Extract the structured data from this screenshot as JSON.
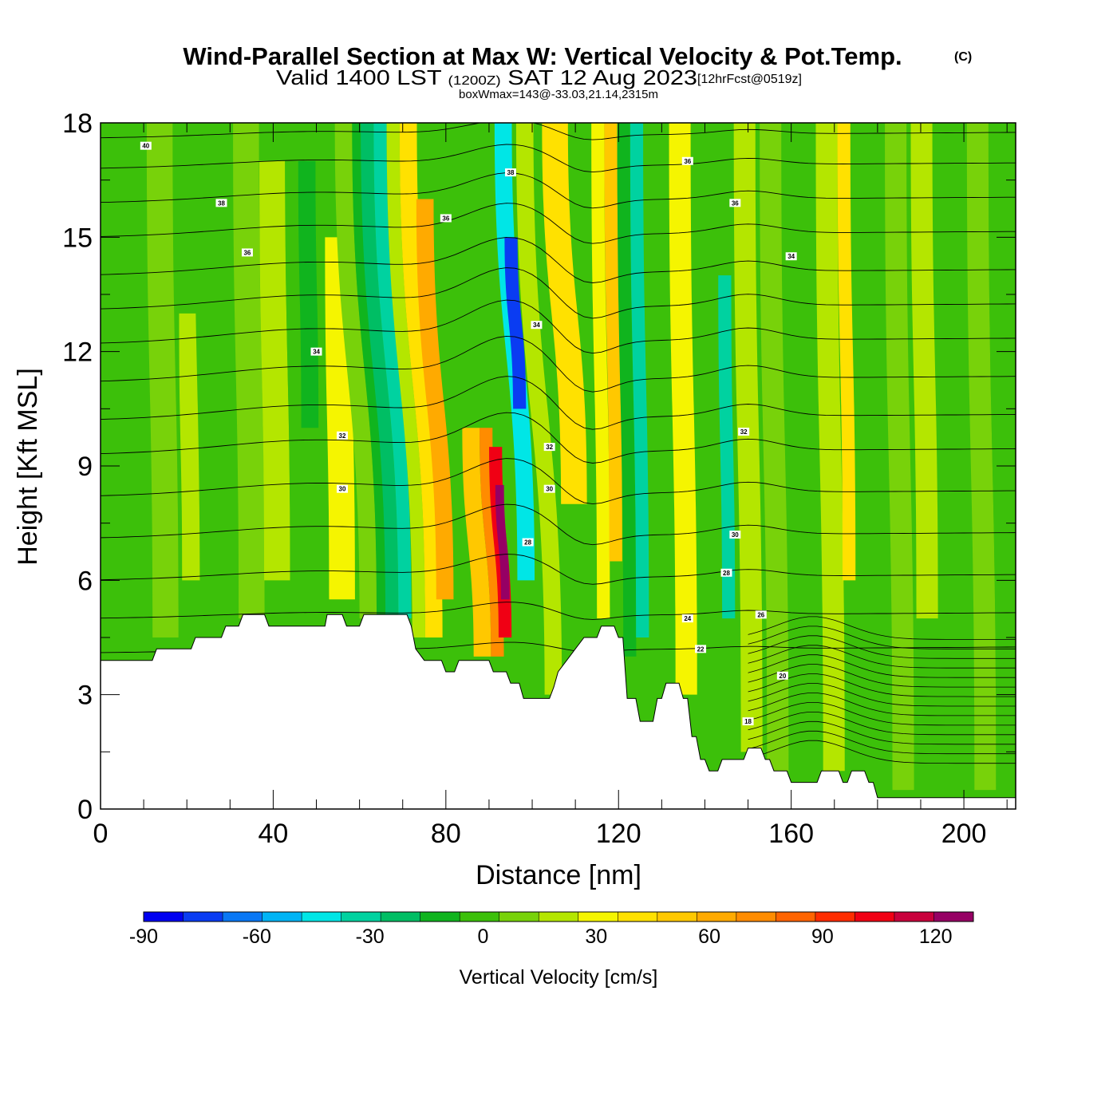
{
  "chart_data": {
    "type": "heatmap",
    "title": "Wind-Parallel Section at Max W: Vertical Velocity & Pot.Temp.",
    "title_mark": "(C)",
    "subtitle": {
      "prefix": "Valid 1400 LST",
      "utc": "(1200Z)",
      "date": "SAT 12 Aug 2023",
      "forecast": "[12hrFcst@0519z]"
    },
    "box_note": "boxWmax=143@-33.03,21.14,2315m",
    "xlabel": "Distance [nm]",
    "ylabel": "Height [Kft MSL]",
    "xlim": [
      0,
      212
    ],
    "ylim": [
      0,
      18
    ],
    "xticks": [
      "0",
      "40",
      "80",
      "120",
      "160",
      "200"
    ],
    "yticks": [
      "0",
      "3",
      "6",
      "9",
      "12",
      "15",
      "18"
    ],
    "colorbar": {
      "label": "Vertical Velocity [cm/s]",
      "min": -90,
      "max": 130,
      "step": 10,
      "ticks": [
        "-90",
        "-60",
        "-30",
        "0",
        "30",
        "60",
        "90",
        "120"
      ],
      "colors": [
        "#0000f0",
        "#0a3cf2",
        "#0a78f5",
        "#00b4f5",
        "#00e6e6",
        "#00d2a0",
        "#00be64",
        "#10b41e",
        "#3cc00a",
        "#78d20a",
        "#b4e600",
        "#f5f500",
        "#ffe100",
        "#ffc800",
        "#ffaa00",
        "#ff8c00",
        "#ff6400",
        "#ff2d00",
        "#f00014",
        "#c8003c",
        "#960064"
      ]
    },
    "vertical_velocity_bands": [
      {
        "x": 2,
        "w": 8,
        "v": -5,
        "y0": 4,
        "y1": 18
      },
      {
        "x": 12,
        "w": 6,
        "v": 5,
        "y0": 4.5,
        "y1": 18
      },
      {
        "x": 19,
        "w": 5,
        "v": 15,
        "y0": 6,
        "y1": 13
      },
      {
        "x": 23,
        "w": 8,
        "v": -5,
        "y0": 4.8,
        "y1": 18
      },
      {
        "x": 32,
        "w": 6,
        "v": 5,
        "y0": 5,
        "y1": 18
      },
      {
        "x": 38,
        "w": 6,
        "v": 15,
        "y0": 6,
        "y1": 17
      },
      {
        "x": 44,
        "w": 6,
        "v": -5,
        "y0": 5,
        "y1": 18
      },
      {
        "x": 47,
        "w": 4,
        "v": -15,
        "y0": 10,
        "y1": 17
      },
      {
        "x": 53,
        "w": 6,
        "v": 25,
        "y0": 5.5,
        "y1": 15
      },
      {
        "x": 60,
        "w": 4,
        "v": 5,
        "y0": 5,
        "y1": 18
      },
      {
        "x": 64,
        "w": 3,
        "v": -15,
        "y0": 5.1,
        "y1": 18
      },
      {
        "x": 66,
        "w": 3,
        "v": -25,
        "y0": 5,
        "y1": 18
      },
      {
        "x": 69,
        "w": 3,
        "v": -35,
        "y0": 5,
        "y1": 18
      },
      {
        "x": 72,
        "w": 3,
        "v": 15,
        "y0": 4.5,
        "y1": 18
      },
      {
        "x": 75,
        "w": 4,
        "v": 35,
        "y0": 4.5,
        "y1": 18
      },
      {
        "x": 78,
        "w": 4,
        "v": 55,
        "y0": 5.5,
        "y1": 16
      },
      {
        "x": 86,
        "w": 4,
        "v": 45,
        "y0": 4,
        "y1": 10
      },
      {
        "x": 90,
        "w": 3,
        "v": 65,
        "y0": 4,
        "y1": 10
      },
      {
        "x": 92,
        "w": 3,
        "v": 95,
        "y0": 4.5,
        "y1": 9.5
      },
      {
        "x": 93,
        "w": 2,
        "v": 125,
        "y0": 5.5,
        "y1": 8.5
      },
      {
        "x": 97,
        "w": 4,
        "v": -45,
        "y0": 6,
        "y1": 18
      },
      {
        "x": 98,
        "w": 3,
        "v": -75,
        "y0": 10.5,
        "y1": 15
      },
      {
        "x": 102,
        "w": 4,
        "v": 15,
        "y0": 3,
        "y1": 18
      },
      {
        "x": 108,
        "w": 6,
        "v": 35,
        "y0": 8,
        "y1": 18
      },
      {
        "x": 115,
        "w": 3,
        "v": 25,
        "y0": 5,
        "y1": 18
      },
      {
        "x": 118,
        "w": 3,
        "v": 45,
        "y0": 6.5,
        "y1": 18
      },
      {
        "x": 121,
        "w": 3,
        "v": -15,
        "y0": 4,
        "y1": 18
      },
      {
        "x": 124,
        "w": 3,
        "v": -35,
        "y0": 4.5,
        "y1": 18
      },
      {
        "x": 128,
        "w": 4,
        "v": -5,
        "y0": 2.5,
        "y1": 18
      },
      {
        "x": 133,
        "w": 5,
        "v": 25,
        "y0": 3,
        "y1": 18
      },
      {
        "x": 139,
        "w": 4,
        "v": -5,
        "y0": 1.5,
        "y1": 18
      },
      {
        "x": 144,
        "w": 3,
        "v": -35,
        "y0": 5,
        "y1": 14
      },
      {
        "x": 148,
        "w": 5,
        "v": 15,
        "y0": 1.5,
        "y1": 18
      },
      {
        "x": 154,
        "w": 5,
        "v": 5,
        "y0": 1,
        "y1": 18
      },
      {
        "x": 160,
        "w": 6,
        "v": -5,
        "y0": 1,
        "y1": 18
      },
      {
        "x": 167,
        "w": 5,
        "v": 15,
        "y0": 1,
        "y1": 18
      },
      {
        "x": 172,
        "w": 3,
        "v": 35,
        "y0": 6,
        "y1": 18
      },
      {
        "x": 176,
        "w": 6,
        "v": -5,
        "y0": 0.5,
        "y1": 18
      },
      {
        "x": 183,
        "w": 5,
        "v": 5,
        "y0": 0.5,
        "y1": 18
      },
      {
        "x": 189,
        "w": 5,
        "v": 15,
        "y0": 5,
        "y1": 18
      },
      {
        "x": 195,
        "w": 6,
        "v": -5,
        "y0": 1,
        "y1": 18
      },
      {
        "x": 202,
        "w": 5,
        "v": 5,
        "y0": 0.5,
        "y1": 18
      },
      {
        "x": 207,
        "w": 4,
        "v": -5,
        "y0": 0.5,
        "y1": 18
      }
    ],
    "terrain_kft": [
      [
        0,
        3.9
      ],
      [
        12,
        3.9
      ],
      [
        13,
        4.2
      ],
      [
        21,
        4.2
      ],
      [
        22,
        4.5
      ],
      [
        28,
        4.5
      ],
      [
        29,
        4.8
      ],
      [
        32,
        4.8
      ],
      [
        33,
        5.1
      ],
      [
        38,
        5.1
      ],
      [
        39,
        4.8
      ],
      [
        52,
        4.8
      ],
      [
        52.5,
        5.1
      ],
      [
        56,
        5.1
      ],
      [
        57,
        4.8
      ],
      [
        60,
        4.8
      ],
      [
        61,
        5.1
      ],
      [
        71,
        5.1
      ],
      [
        72,
        4.8
      ],
      [
        73,
        4.2
      ],
      [
        75,
        3.9
      ],
      [
        79,
        3.9
      ],
      [
        80,
        3.6
      ],
      [
        82,
        3.6
      ],
      [
        83,
        3.9
      ],
      [
        90,
        3.9
      ],
      [
        91,
        3.6
      ],
      [
        94,
        3.6
      ],
      [
        95,
        3.3
      ],
      [
        97,
        3.3
      ],
      [
        98,
        2.9
      ],
      [
        104,
        2.9
      ],
      [
        105,
        3.2
      ],
      [
        106,
        3.6
      ],
      [
        108,
        3.9
      ],
      [
        110,
        4.2
      ],
      [
        112,
        4.5
      ],
      [
        115,
        4.5
      ],
      [
        116,
        4.8
      ],
      [
        119,
        4.8
      ],
      [
        120,
        4.5
      ],
      [
        121,
        4.5
      ],
      [
        122,
        2.9
      ],
      [
        124,
        2.9
      ],
      [
        125,
        2.3
      ],
      [
        128,
        2.3
      ],
      [
        129,
        2.9
      ],
      [
        130,
        2.9
      ],
      [
        131,
        3.3
      ],
      [
        134,
        3.3
      ],
      [
        135,
        2.9
      ],
      [
        136,
        2.9
      ],
      [
        137,
        1.9
      ],
      [
        138,
        1.9
      ],
      [
        139,
        1.3
      ],
      [
        140,
        1.3
      ],
      [
        141,
        1
      ],
      [
        143,
        1
      ],
      [
        144,
        1.3
      ],
      [
        149,
        1.3
      ],
      [
        150,
        1.6
      ],
      [
        153,
        1.6
      ],
      [
        154,
        1.3
      ],
      [
        155,
        1.3
      ],
      [
        156,
        1
      ],
      [
        159,
        1
      ],
      [
        160,
        0.7
      ],
      [
        166,
        0.7
      ],
      [
        167,
        1
      ],
      [
        171,
        1
      ],
      [
        172,
        0.7
      ],
      [
        173,
        0.7
      ],
      [
        174,
        1
      ],
      [
        177,
        1
      ],
      [
        178,
        0.7
      ],
      [
        179,
        0.7
      ],
      [
        180,
        0.3
      ],
      [
        209,
        0.3
      ],
      [
        210,
        0.3
      ],
      [
        212,
        0.3
      ]
    ],
    "theta_contours": [
      {
        "base": 4.1,
        "amp": 0.2,
        "label": "",
        "lx": 0
      },
      {
        "base": 5.0,
        "amp": 0.35,
        "label": "",
        "lx": 0
      },
      {
        "base": 6.0,
        "amp": 0.6,
        "label": "28",
        "lx": 99
      },
      {
        "base": 7.1,
        "amp": 0.8,
        "label": "30",
        "lx": 57
      },
      {
        "base": 8.2,
        "amp": 0.9,
        "label": "",
        "lx": 0
      },
      {
        "base": 9.3,
        "amp": 1.0,
        "label": "32",
        "lx": 56
      },
      {
        "base": 10.2,
        "amp": 1.05,
        "label": "",
        "lx": 0
      },
      {
        "base": 11.2,
        "amp": 1.1,
        "label": "34",
        "lx": 50
      },
      {
        "base": 12.2,
        "amp": 1.05,
        "label": "",
        "lx": 0
      },
      {
        "base": 13.1,
        "amp": 1.0,
        "label": "",
        "lx": 0
      },
      {
        "base": 14.0,
        "amp": 0.9,
        "label": "36",
        "lx": 34
      },
      {
        "base": 15.0,
        "amp": 0.8,
        "label": "",
        "lx": 0
      },
      {
        "base": 15.9,
        "amp": 0.7,
        "label": "38",
        "lx": 28
      },
      {
        "base": 16.8,
        "amp": 0.55,
        "label": "",
        "lx": 0
      },
      {
        "base": 17.6,
        "amp": 0.4,
        "label": "40",
        "lx": 10
      }
    ],
    "contour_labels": [
      {
        "text": "40",
        "x": 10.5,
        "y": 17.4
      },
      {
        "text": "38",
        "x": 28,
        "y": 15.9
      },
      {
        "text": "36",
        "x": 34,
        "y": 14.6
      },
      {
        "text": "34",
        "x": 50,
        "y": 12
      },
      {
        "text": "32",
        "x": 56,
        "y": 9.8
      },
      {
        "text": "30",
        "x": 56,
        "y": 8.4
      },
      {
        "text": "38",
        "x": 95,
        "y": 16.7
      },
      {
        "text": "36",
        "x": 80,
        "y": 15.5
      },
      {
        "text": "34",
        "x": 101,
        "y": 12.7
      },
      {
        "text": "32",
        "x": 104,
        "y": 9.5
      },
      {
        "text": "30",
        "x": 104,
        "y": 8.4
      },
      {
        "text": "28",
        "x": 99,
        "y": 7
      },
      {
        "text": "36",
        "x": 136,
        "y": 17
      },
      {
        "text": "36",
        "x": 147,
        "y": 15.9
      },
      {
        "text": "34",
        "x": 160,
        "y": 14.5
      },
      {
        "text": "32",
        "x": 149,
        "y": 9.9
      },
      {
        "text": "30",
        "x": 147,
        "y": 7.2
      },
      {
        "text": "28",
        "x": 145,
        "y": 6.2
      },
      {
        "text": "26",
        "x": 153,
        "y": 5.1
      },
      {
        "text": "24",
        "x": 136,
        "y": 5
      },
      {
        "text": "22",
        "x": 139,
        "y": 4.2
      },
      {
        "text": "20",
        "x": 158,
        "y": 3.5
      },
      {
        "text": "18",
        "x": 150,
        "y": 2.3
      }
    ]
  }
}
